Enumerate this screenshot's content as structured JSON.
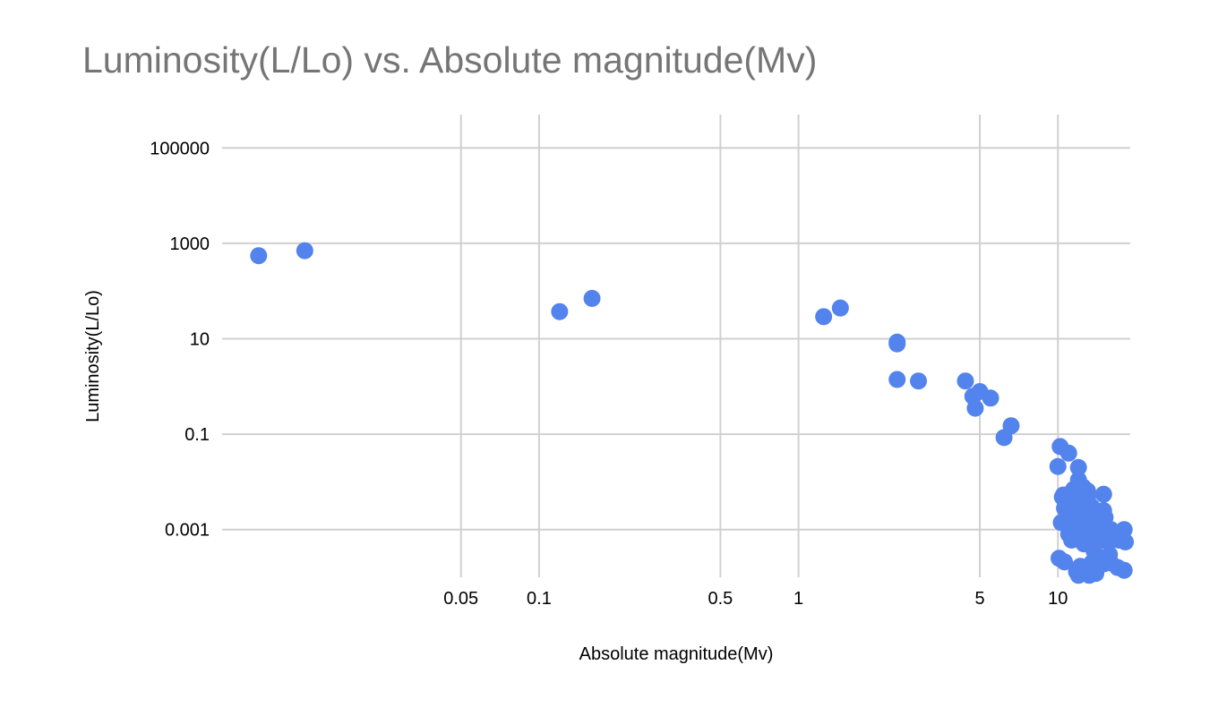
{
  "chart_data": {
    "type": "scatter",
    "title": "Luminosity(L/Lo) vs. Absolute magnitude(Mv)",
    "xlabel": "Absolute magnitude(Mv)",
    "ylabel": "Luminosity(L/Lo)",
    "x_scale": "log",
    "y_scale": "log",
    "xlim": [
      0.006,
      19
    ],
    "ylim": [
      0.0001,
      500000
    ],
    "x_ticks": [
      0.05,
      0.1,
      0.5,
      1,
      5,
      10
    ],
    "x_tick_labels": [
      "0.05",
      "0.1",
      "0.5",
      "1",
      "5",
      "10"
    ],
    "y_ticks": [
      0.001,
      0.1,
      10,
      1000,
      100000
    ],
    "y_tick_labels": [
      "0.001",
      "0.1",
      "10",
      "1000",
      "100000"
    ],
    "grid": true,
    "legend": "none",
    "marker_color": "#5383ec",
    "series": [
      {
        "points": [
          [
            0.0083,
            550
          ],
          [
            0.0125,
            700
          ],
          [
            0.12,
            37
          ],
          [
            0.16,
            70
          ],
          [
            1.25,
            29
          ],
          [
            1.45,
            44
          ],
          [
            2.4,
            8.5
          ],
          [
            2.4,
            7.8
          ],
          [
            2.4,
            1.4
          ],
          [
            2.9,
            1.3
          ],
          [
            4.4,
            1.3
          ],
          [
            4.7,
            0.62
          ],
          [
            5.0,
            0.78
          ],
          [
            4.8,
            0.35
          ],
          [
            5.5,
            0.57
          ],
          [
            6.6,
            0.15
          ],
          [
            6.2,
            0.085
          ],
          [
            10.2,
            0.055
          ],
          [
            11.0,
            0.04
          ],
          [
            10.0,
            0.021
          ],
          [
            10.5,
            0.0053
          ],
          [
            10.4,
            0.0048
          ],
          [
            10.6,
            0.0028
          ],
          [
            10.3,
            0.0014
          ],
          [
            11.0,
            0.0055
          ],
          [
            11.0,
            0.0042
          ],
          [
            11.2,
            0.003
          ],
          [
            11.0,
            0.0019
          ],
          [
            11.1,
            0.0012
          ],
          [
            11.0,
            0.0008
          ],
          [
            11.3,
            0.0006
          ],
          [
            11.5,
            0.007
          ],
          [
            11.5,
            0.0045
          ],
          [
            11.6,
            0.0032
          ],
          [
            11.5,
            0.0022
          ],
          [
            11.7,
            0.0015
          ],
          [
            11.6,
            0.001
          ],
          [
            11.5,
            0.0007
          ],
          [
            12.0,
            0.02
          ],
          [
            12.0,
            0.011
          ],
          [
            12.1,
            0.006
          ],
          [
            12.0,
            0.004
          ],
          [
            12.2,
            0.0026
          ],
          [
            12.0,
            0.0018
          ],
          [
            12.3,
            0.0012
          ],
          [
            12.0,
            0.0008
          ],
          [
            12.5,
            0.0078
          ],
          [
            12.6,
            0.0052
          ],
          [
            12.4,
            0.0034
          ],
          [
            12.6,
            0.0024
          ],
          [
            12.5,
            0.0016
          ],
          [
            12.7,
            0.0011
          ],
          [
            12.5,
            0.0007
          ],
          [
            12.6,
            0.0005
          ],
          [
            13.0,
            0.0065
          ],
          [
            13.0,
            0.0045
          ],
          [
            13.1,
            0.003
          ],
          [
            13.0,
            0.002
          ],
          [
            13.2,
            0.0013
          ],
          [
            13.0,
            0.0009
          ],
          [
            13.1,
            0.0006
          ],
          [
            13.5,
            0.003
          ],
          [
            13.6,
            0.0022
          ],
          [
            13.5,
            0.0015
          ],
          [
            13.6,
            0.001
          ],
          [
            13.5,
            0.0007
          ],
          [
            14.0,
            0.0025
          ],
          [
            14.2,
            0.0018
          ],
          [
            14.0,
            0.0012
          ],
          [
            14.1,
            0.0008
          ],
          [
            14.0,
            0.0006
          ],
          [
            15.0,
            0.0055
          ],
          [
            15.0,
            0.0025
          ],
          [
            15.2,
            0.0018
          ],
          [
            15.0,
            0.0012
          ],
          [
            15.1,
            0.0009
          ],
          [
            15.0,
            0.0006
          ],
          [
            16.0,
            0.001
          ],
          [
            16.2,
            0.0008
          ],
          [
            16.0,
            0.0006
          ],
          [
            17.0,
            0.0008
          ],
          [
            17.2,
            0.0006
          ],
          [
            18.0,
            0.001
          ],
          [
            18.2,
            0.00055
          ],
          [
            10.1,
            0.00025
          ],
          [
            10.6,
            0.00021
          ],
          [
            11.8,
            0.00013
          ],
          [
            12.0,
            0.00011
          ],
          [
            12.2,
            0.00017
          ],
          [
            12.8,
            0.00012
          ],
          [
            13.0,
            0.00015
          ],
          [
            13.2,
            0.00011
          ],
          [
            13.5,
            0.0002
          ],
          [
            14.0,
            0.00012
          ],
          [
            14.2,
            0.00016
          ],
          [
            14.0,
            0.00021
          ],
          [
            15.0,
            0.00019
          ],
          [
            15.5,
            0.00025
          ],
          [
            16.0,
            0.0002
          ],
          [
            17.0,
            0.00016
          ],
          [
            18.0,
            0.00014
          ],
          [
            13.8,
            0.00035
          ],
          [
            15.8,
            0.0003
          ]
        ]
      }
    ]
  }
}
